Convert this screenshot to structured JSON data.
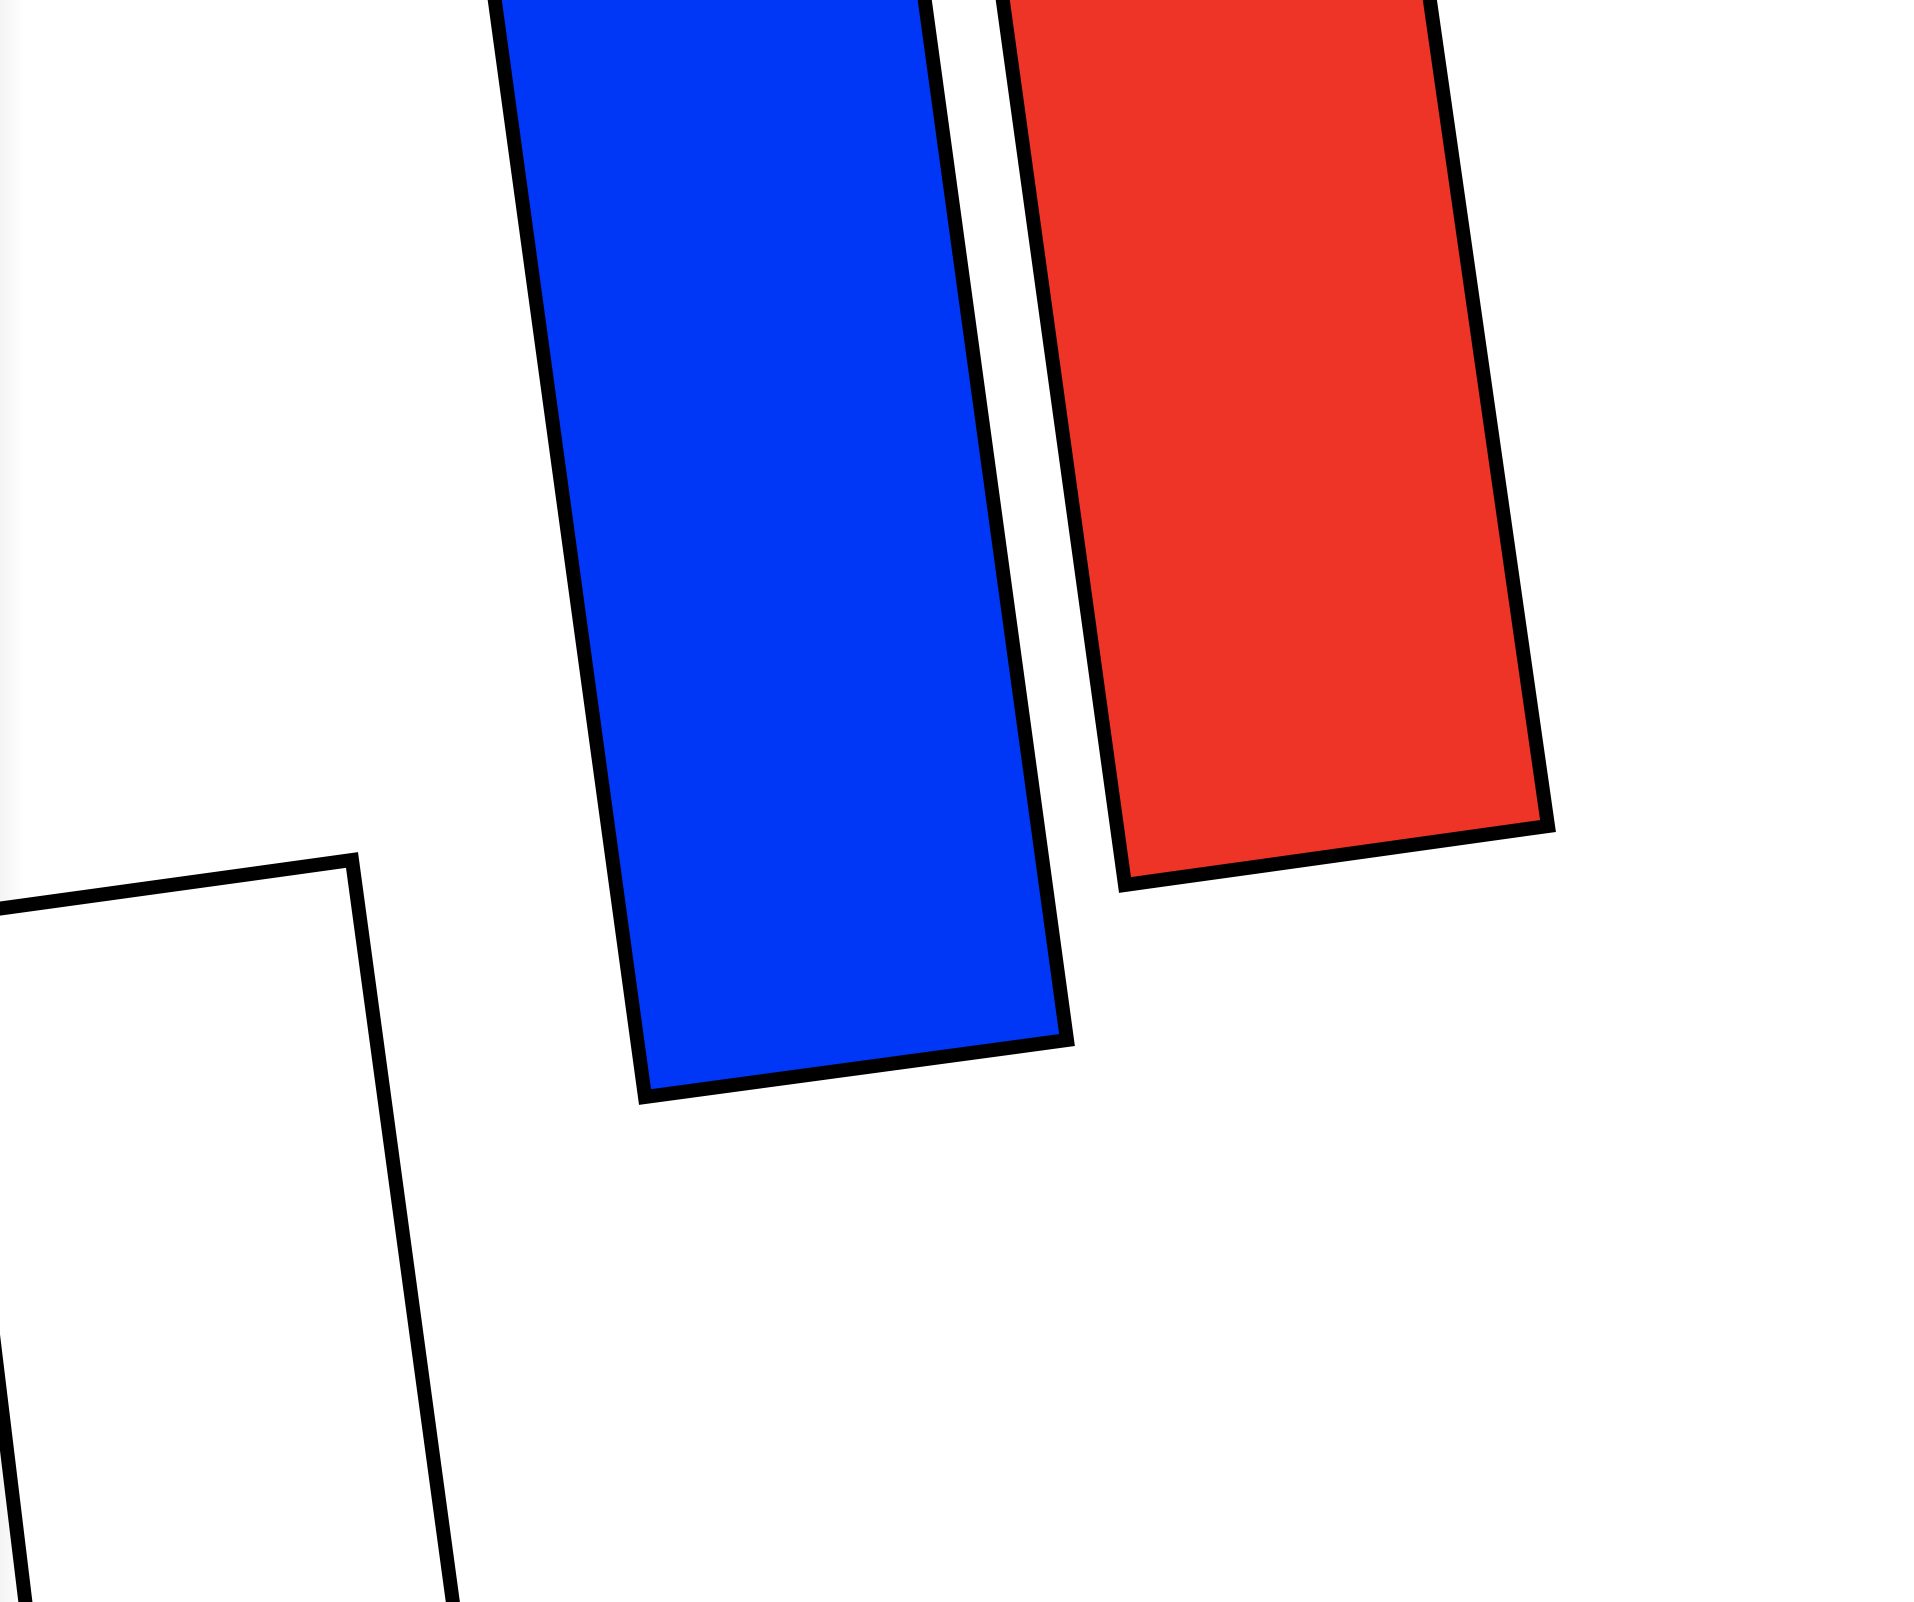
{
  "colors": {
    "background": "#ffffff",
    "left_edge_shadow": "#f4f4f4",
    "outline": "#000000",
    "blue_bar": "#0037f7",
    "red_bar": "#ed3427",
    "white_bar": "#ffffff"
  },
  "shapes": [
    {
      "name": "white-tilted-bar",
      "fill_key": "white_bar"
    },
    {
      "name": "blue-tilted-bar",
      "fill_key": "blue_bar"
    },
    {
      "name": "red-tilted-bar",
      "fill_key": "red_bar"
    }
  ]
}
